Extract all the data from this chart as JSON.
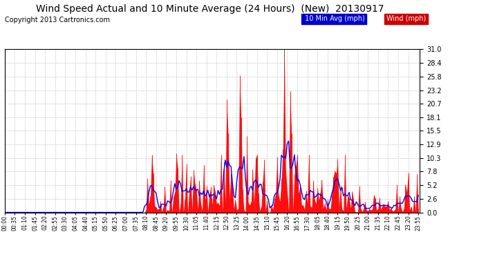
{
  "title": "Wind Speed Actual and 10 Minute Average (24 Hours)  (New)  20130917",
  "copyright": "Copyright 2013 Cartronics.com",
  "y_ticks": [
    0.0,
    2.6,
    5.2,
    7.8,
    10.3,
    12.9,
    15.5,
    18.1,
    20.7,
    23.2,
    25.8,
    28.4,
    31.0
  ],
  "y_max": 31.0,
  "y_min": 0.0,
  "background_color": "#ffffff",
  "plot_bg_color": "#ffffff",
  "grid_color": "#c8c8c8",
  "wind_color": "#ff0000",
  "avg_color": "#0000ff",
  "dark_spike_color": "#404040",
  "title_fontsize": 10,
  "copyright_fontsize": 7,
  "legend_blue_bg": "#0000cc",
  "legend_red_bg": "#cc0000",
  "legend_fontsize": 7
}
